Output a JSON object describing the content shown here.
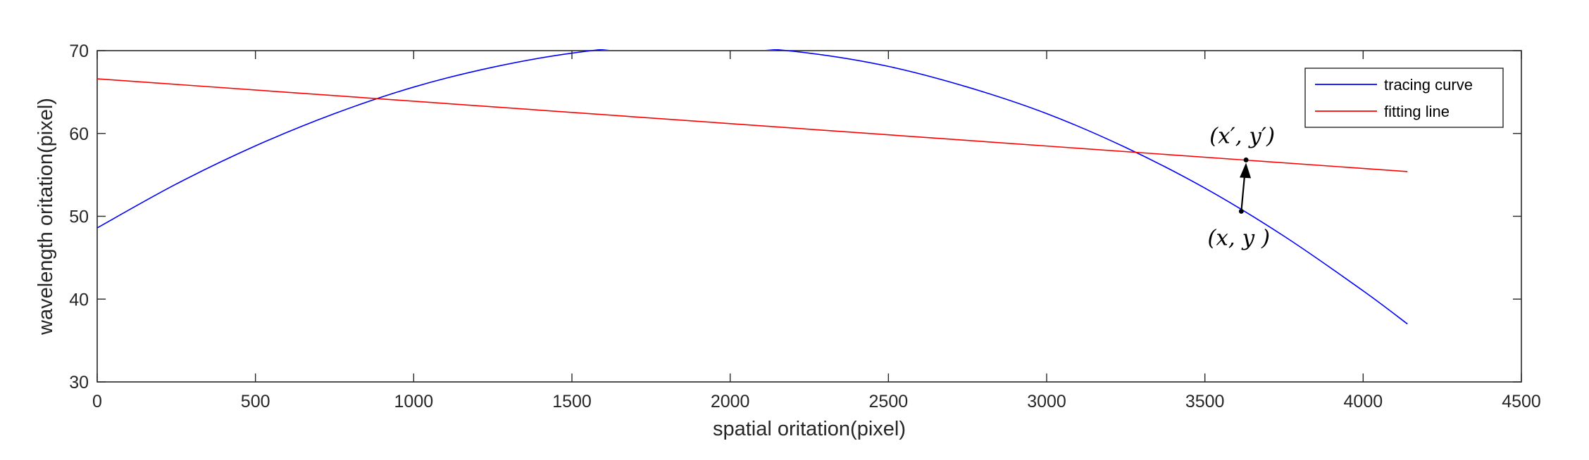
{
  "chart_data": {
    "type": "line",
    "title": "",
    "xlabel": "spatial oritation(pixel)",
    "ylabel": "wavelength oritation(pixel)",
    "xlim": [
      0,
      4500
    ],
    "ylim": [
      30,
      70
    ],
    "xticks": [
      0,
      500,
      1000,
      1500,
      2000,
      2500,
      3000,
      3500,
      4000,
      4500
    ],
    "yticks": [
      30,
      40,
      50,
      60,
      70
    ],
    "xtick_labels": [
      "0",
      "500",
      "1000",
      "1500",
      "2000",
      "2500",
      "3000",
      "3500",
      "4000",
      "4500"
    ],
    "ytick_labels": [
      "30",
      "40",
      "50",
      "60",
      "70"
    ],
    "grid": false,
    "legend_position": "top-right",
    "series": [
      {
        "name": "tracing curve",
        "color": "#0000ff",
        "x": [
          0,
          250,
          500,
          750,
          1000,
          1250,
          1500,
          1750,
          2000,
          2250,
          2500,
          2750,
          3000,
          3250,
          3500,
          3750,
          4000,
          4140
        ],
        "y": [
          48.6,
          53.9,
          58.5,
          62.4,
          65.6,
          68.0,
          69.7,
          70.6,
          70.5,
          69.7,
          68.1,
          65.6,
          62.4,
          58.3,
          53.4,
          47.6,
          41.0,
          37.0
        ]
      },
      {
        "name": "fitting line",
        "color": "#ff0000",
        "x": [
          0,
          4140
        ],
        "y": [
          66.6,
          55.4
        ]
      }
    ],
    "annotations": [
      {
        "label": "(x′, y′)",
        "x": 3630,
        "y": 56.8
      },
      {
        "label": "(x, y )",
        "x": 3615,
        "y": 50.6
      }
    ]
  }
}
